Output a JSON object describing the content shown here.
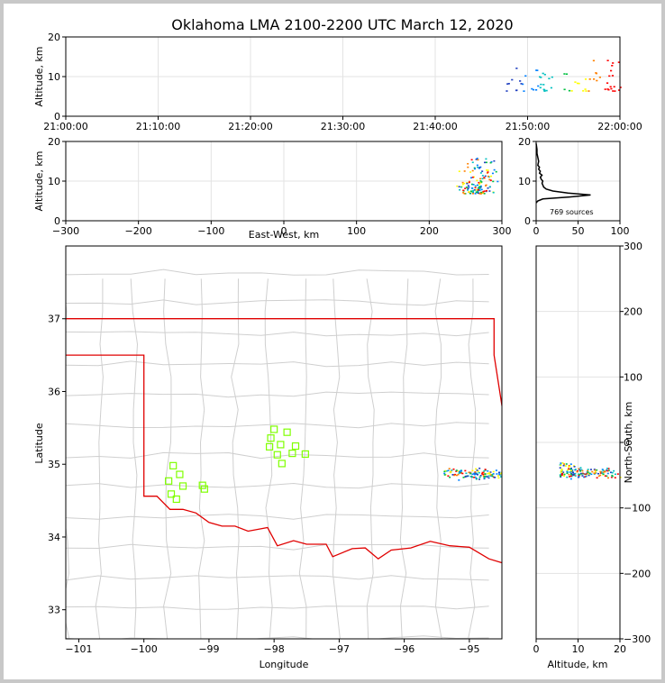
{
  "title": "Oklahoma LMA 2100-2200 UTC March 12, 2020",
  "colors": {
    "background": "#ffffff",
    "border": "#c8c8c8",
    "state_line": "#e00000",
    "county_line": "#cfcfcf",
    "station_marker": "#7fff00",
    "histogram": "#000000",
    "source_colors": [
      "#1f3fbf",
      "#0080ff",
      "#00c0c0",
      "#00c040",
      "#ffff00",
      "#ff8000",
      "#ff0000"
    ]
  },
  "chart_data": [
    {
      "id": "time-height",
      "type": "scatter",
      "xlabel": "",
      "ylabel": "Altitude, km",
      "x_ticks": [
        "21:00:00",
        "21:10:00",
        "21:20:00",
        "21:30:00",
        "21:40:00",
        "21:50:00",
        "22:00:00"
      ],
      "xlim_minutes": [
        0,
        60
      ],
      "y_ticks": [
        "0",
        "10",
        "20"
      ],
      "ylim": [
        0,
        20
      ],
      "grid": true,
      "clusters": [
        {
          "x_range": [
            47.5,
            60
          ],
          "y_range": [
            6.5,
            14.5
          ],
          "count": 70
        }
      ]
    },
    {
      "id": "east-west-height",
      "type": "scatter",
      "xlabel": "East-West, km",
      "ylabel": "Altitude, km",
      "x_ticks": [
        "−300",
        "−200",
        "−100",
        "0",
        "100",
        "200",
        "300"
      ],
      "xlim": [
        -300,
        300
      ],
      "y_ticks": [
        "0",
        "10",
        "20"
      ],
      "ylim": [
        0,
        20
      ],
      "grid": true,
      "clusters": [
        {
          "x_range": [
            225,
            300
          ],
          "y_range": [
            5,
            17
          ],
          "count": 140
        }
      ]
    },
    {
      "id": "altitude-histogram",
      "type": "line",
      "annotation": "769 sources",
      "x_ticks": [
        "0",
        "50",
        "100"
      ],
      "xlim": [
        0,
        100
      ],
      "y_ticks": [
        "0",
        "10",
        "20"
      ],
      "ylim": [
        0,
        20
      ],
      "grid": true,
      "profile": [
        {
          "alt": 4.5,
          "n": 0
        },
        {
          "alt": 5.0,
          "n": 2
        },
        {
          "alt": 5.5,
          "n": 8
        },
        {
          "alt": 6.0,
          "n": 40
        },
        {
          "alt": 6.5,
          "n": 65
        },
        {
          "alt": 7.0,
          "n": 38
        },
        {
          "alt": 7.5,
          "n": 20
        },
        {
          "alt": 8.0,
          "n": 12
        },
        {
          "alt": 8.5,
          "n": 9
        },
        {
          "alt": 9.0,
          "n": 8
        },
        {
          "alt": 9.5,
          "n": 7
        },
        {
          "alt": 10.0,
          "n": 8
        },
        {
          "alt": 10.5,
          "n": 6
        },
        {
          "alt": 11.0,
          "n": 5
        },
        {
          "alt": 11.5,
          "n": 7
        },
        {
          "alt": 12.0,
          "n": 4
        },
        {
          "alt": 12.5,
          "n": 5
        },
        {
          "alt": 13.0,
          "n": 3
        },
        {
          "alt": 13.5,
          "n": 4
        },
        {
          "alt": 14.0,
          "n": 2
        },
        {
          "alt": 15.0,
          "n": 3
        },
        {
          "alt": 16.0,
          "n": 2
        },
        {
          "alt": 17.0,
          "n": 1
        },
        {
          "alt": 18.0,
          "n": 1
        },
        {
          "alt": 19.5,
          "n": 0
        }
      ]
    },
    {
      "id": "plan-view",
      "type": "scatter",
      "xlabel": "Longitude",
      "ylabel": "Latitude",
      "x_ticks": [
        "−101",
        "−100",
        "−99",
        "−98",
        "−97",
        "−96",
        "−95"
      ],
      "xlim": [
        -101.2,
        -94.5
      ],
      "y_ticks": [
        "33",
        "34",
        "35",
        "36",
        "37"
      ],
      "ylim": [
        32.6,
        38.0
      ],
      "stations": [
        {
          "lon": -99.55,
          "lat": 34.98
        },
        {
          "lon": -99.62,
          "lat": 34.77
        },
        {
          "lon": -99.45,
          "lat": 34.86
        },
        {
          "lon": -99.4,
          "lat": 34.7
        },
        {
          "lon": -99.58,
          "lat": 34.59
        },
        {
          "lon": -99.5,
          "lat": 34.52
        },
        {
          "lon": -99.1,
          "lat": 34.71
        },
        {
          "lon": -99.07,
          "lat": 34.66
        },
        {
          "lon": -98.0,
          "lat": 35.48
        },
        {
          "lon": -98.05,
          "lat": 35.36
        },
        {
          "lon": -98.07,
          "lat": 35.24
        },
        {
          "lon": -97.8,
          "lat": 35.44
        },
        {
          "lon": -97.9,
          "lat": 35.27
        },
        {
          "lon": -97.67,
          "lat": 35.25
        },
        {
          "lon": -97.95,
          "lat": 35.13
        },
        {
          "lon": -97.72,
          "lat": 35.15
        },
        {
          "lon": -97.52,
          "lat": 35.14
        },
        {
          "lon": -97.88,
          "lat": 35.01
        }
      ],
      "clusters": [
        {
          "lon_range": [
            -95.4,
            -94.5
          ],
          "lat_range": [
            34.78,
            34.96
          ],
          "count": 120
        }
      ]
    },
    {
      "id": "altitude-north-south",
      "type": "scatter",
      "xlabel": "Altitude, km",
      "ylabel": "North-South, km",
      "x_ticks": [
        "0",
        "10",
        "20"
      ],
      "xlim": [
        0,
        20
      ],
      "y_ticks": [
        "300",
        "200",
        "100",
        "0",
        "−100",
        "−200",
        "−300"
      ],
      "ylim": [
        -300,
        300
      ],
      "grid": true,
      "clusters": [
        {
          "x_range": [
            5,
            20
          ],
          "y_range": [
            -55,
            -30
          ],
          "count": 150
        }
      ]
    }
  ]
}
